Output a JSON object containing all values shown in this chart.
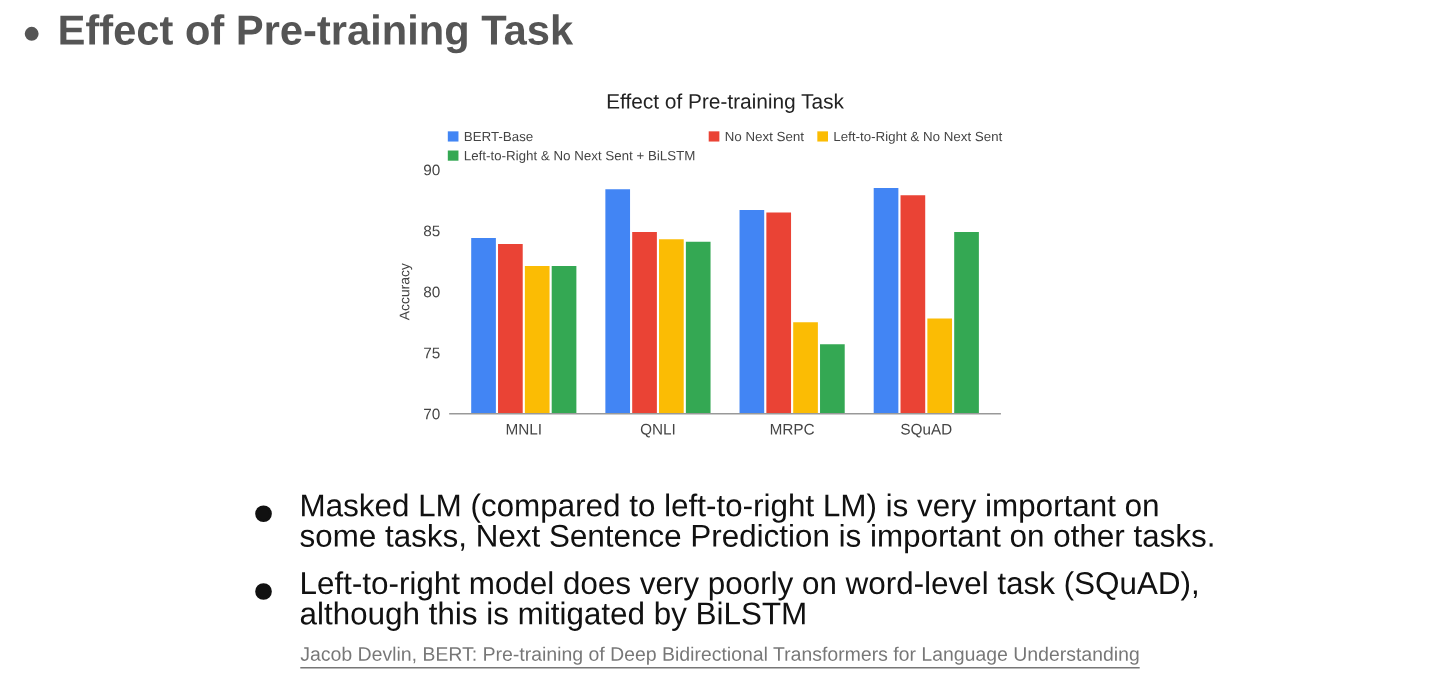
{
  "chart_data": {
    "type": "bar",
    "title": "Effect of Pre-training Task",
    "ylabel": "Accuracy",
    "categories": [
      "MNLI",
      "QNLI",
      "MRPC",
      "SQuAD"
    ],
    "series": [
      {
        "name": "BERT-Base",
        "color": "#4285f4",
        "values": [
          84.4,
          88.4,
          86.7,
          88.5
        ]
      },
      {
        "name": "No Next Sent",
        "color": "#ea4335",
        "values": [
          83.9,
          84.9,
          86.5,
          87.9
        ]
      },
      {
        "name": "Left-to-Right & No Next Sent",
        "color": "#fbbc04",
        "values": [
          82.1,
          84.3,
          77.5,
          77.8
        ]
      },
      {
        "name": "Left-to-Right & No Next Sent + BiLSTM",
        "color": "#34a853",
        "values": [
          82.1,
          84.1,
          75.7,
          84.9
        ]
      }
    ],
    "ylim": [
      70,
      90
    ],
    "yticks": [
      70,
      75,
      80,
      85,
      90
    ],
    "grid": false,
    "legend": "top",
    "annotations": [
      "Effect of Pre-training Task",
      "Masked LM (compared to left-to-right LM) is very important on\nsome tasks, Next Sentence Prediction is important on other tasks.",
      "Left-to-right model does very poorly on word-level task (SQuAD),\nalthough this is mitigated by BiLSTM",
      "Jacob Devlin, BERT: Pre-training of Deep Bidirectional Transformers for Language Understanding"
    ]
  }
}
